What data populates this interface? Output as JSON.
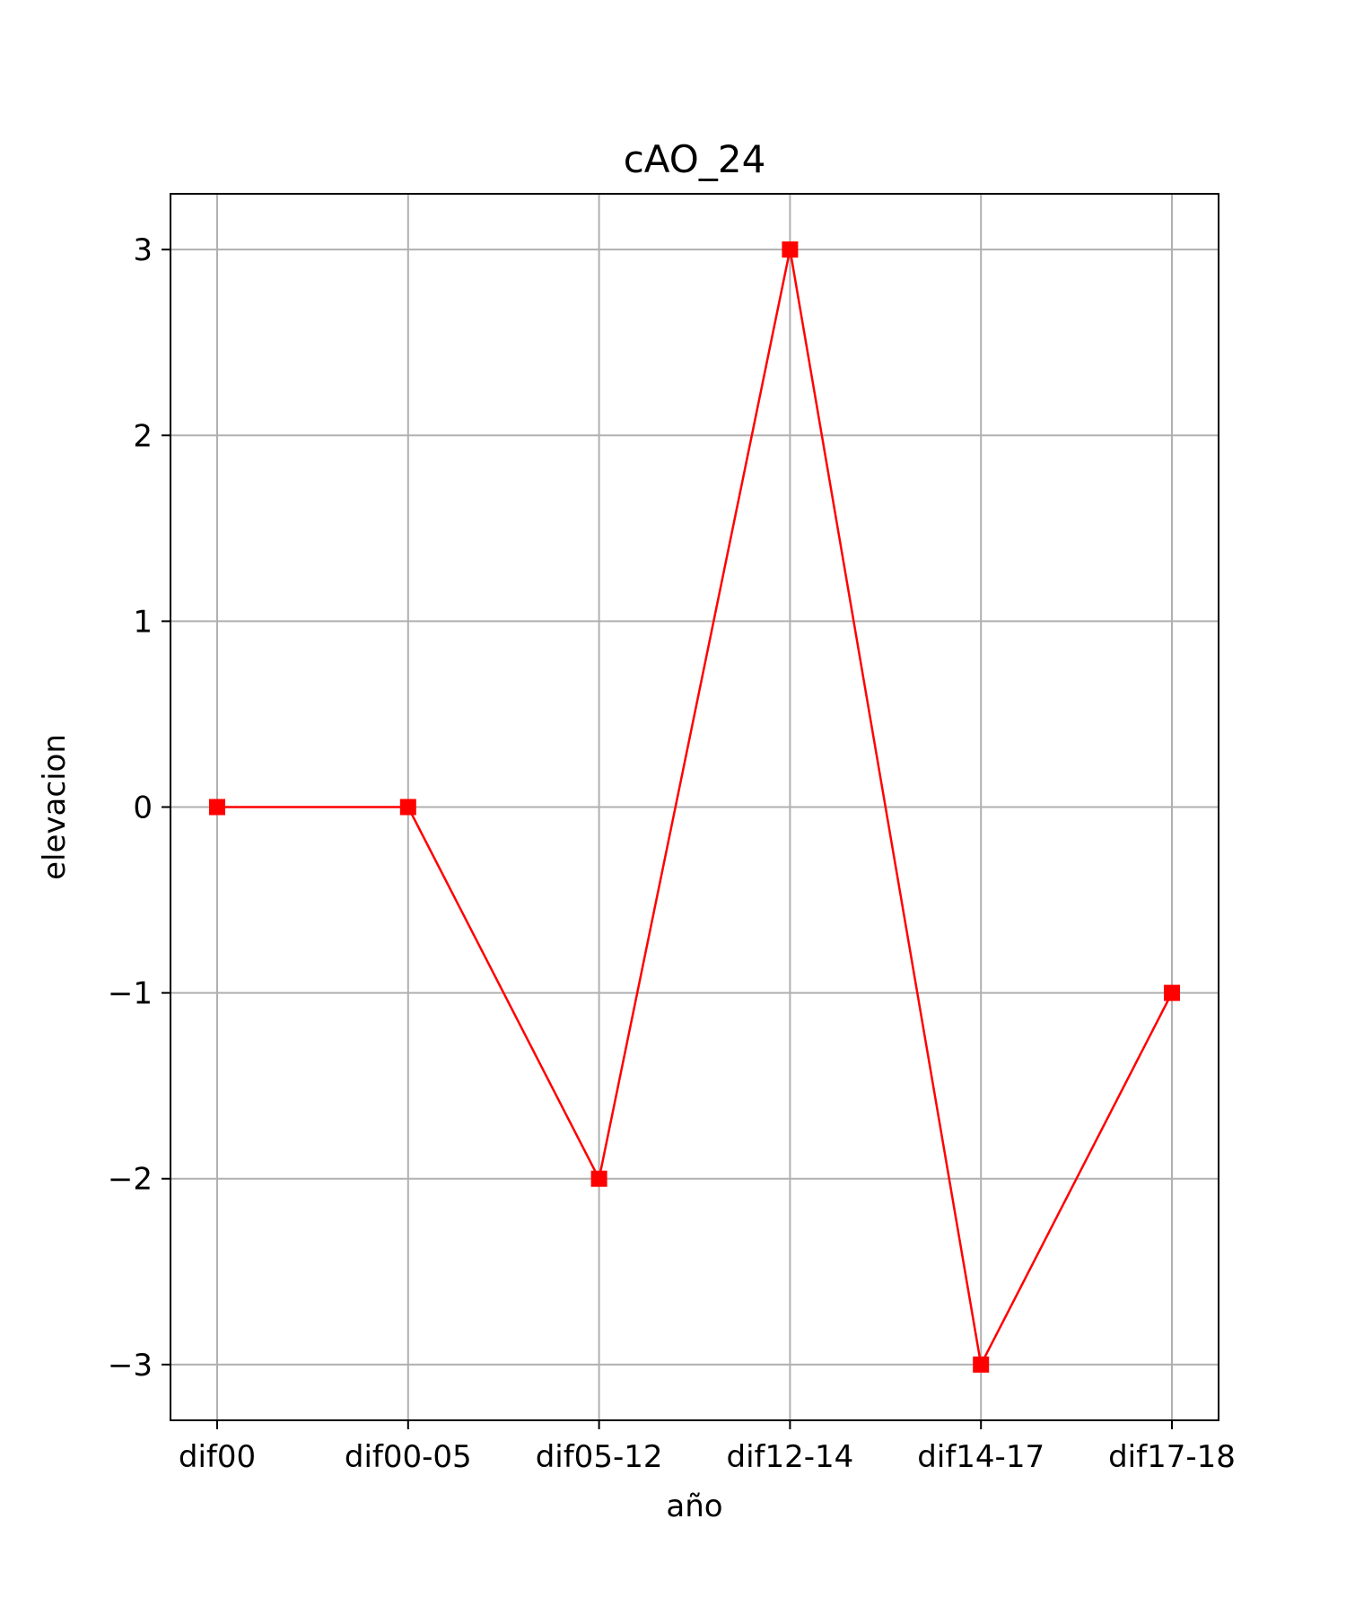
{
  "chart_data": {
    "type": "line",
    "title": "cAO_24",
    "xlabel": "año",
    "ylabel": "elevacion",
    "categories": [
      "dif00",
      "dif00-05",
      "dif05-12",
      "dif12-14",
      "dif14-17",
      "dif17-18"
    ],
    "series": [
      {
        "values": [
          0,
          0,
          -2,
          3,
          -3,
          -1
        ],
        "color": "#ff0000",
        "marker": "square"
      }
    ],
    "ylim": [
      -3.3,
      3.3
    ],
    "yticks": [
      -3,
      -2,
      -1,
      0,
      1,
      2,
      3
    ],
    "ytick_labels": [
      "−3",
      "−2",
      "−1",
      "0",
      "1",
      "2",
      "3"
    ],
    "grid": true,
    "grid_color": "#b0b0b0",
    "axis_color": "#000000"
  }
}
